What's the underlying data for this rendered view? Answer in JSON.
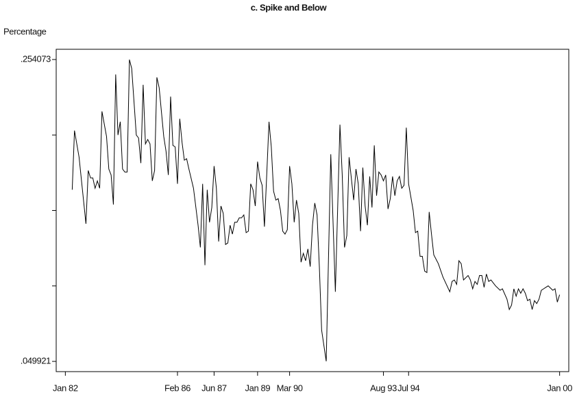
{
  "chart_data": {
    "type": "line",
    "title": "c. Spike and Below",
    "y_label": "Percentage",
    "x": [
      "Apr 82",
      "May 82",
      "Jul 82",
      "Oct 82",
      "Nov 82",
      "Dec 82",
      "Jan 83",
      "Feb 83",
      "Mar 83",
      "Apr 83",
      "May 83",
      "Jul 83",
      "Aug 83",
      "Sep 83",
      "Oct 83",
      "Nov 83",
      "Dec 83",
      "Jan 84",
      "Feb 84",
      "Mar 84",
      "Apr 84",
      "May 84",
      "Jun 84",
      "Aug 84",
      "Sep 84",
      "Oct 84",
      "Nov 84",
      "Dec 84",
      "Jan 85",
      "Feb 85",
      "Mar 85",
      "Apr 85",
      "May 85",
      "Jun 85",
      "Aug 85",
      "Sep 85",
      "Oct 85",
      "Nov 85",
      "Dec 85",
      "Jan 86",
      "Feb 86",
      "Mar 86",
      "Apr 86",
      "May 86",
      "Jun 86",
      "Jul 86",
      "Sep 86",
      "Nov 86",
      "Dec 86",
      "Jan 87",
      "Feb 87",
      "Mar 87",
      "Apr 87",
      "May 87",
      "Jun 87",
      "Jul 87",
      "Aug 87",
      "Sep 87",
      "Oct 87",
      "Nov 87",
      "Dec 87",
      "Jan 88",
      "Feb 88",
      "Mar 88",
      "Apr 88",
      "May 88",
      "Jun 88",
      "Jul 88",
      "Aug 88",
      "Sep 88",
      "Oct 88",
      "Nov 88",
      "Dec 88",
      "Jan 89",
      "Feb 89",
      "Mar 89",
      "Apr 89",
      "May 89",
      "Jun 89",
      "Jul 89",
      "Aug 89",
      "Sep 89",
      "Oct 89",
      "Nov 89",
      "Dec 89",
      "Jan 90",
      "Feb 90",
      "Mar 90",
      "Apr 90",
      "May 90",
      "Jun 90",
      "Jul 90",
      "Aug 90",
      "Sep 90",
      "Oct 90",
      "Nov 90",
      "Dec 90",
      "Jan 91",
      "Feb 91",
      "Mar 91",
      "Apr 91",
      "May 91",
      "Jul 91",
      "Sep 91",
      "Nov 91",
      "Jan 92",
      "Feb 92",
      "Mar 92",
      "Apr 92",
      "May 92",
      "Jul 92",
      "Aug 92",
      "Sep 92",
      "Oct 92",
      "Nov 92",
      "Dec 92",
      "Jan 93",
      "Feb 93",
      "Mar 93",
      "Apr 93",
      "May 93",
      "Jun 93",
      "Jul 93",
      "Aug 93",
      "Sep 93",
      "Oct 93",
      "Nov 93",
      "Dec 93",
      "Jan 94",
      "Feb 94",
      "Mar 94",
      "Apr 94",
      "May 94",
      "Jun 94",
      "Jul 94",
      "Sep 94",
      "Oct 94",
      "Nov 94",
      "Dec 94",
      "Jan 95",
      "Feb 95",
      "Mar 95",
      "Apr 95",
      "May 95",
      "Jun 95",
      "Aug 95",
      "Oct 95",
      "Jan 96",
      "Feb 96",
      "Mar 96",
      "Apr 96",
      "May 96",
      "Jun 96",
      "Jul 96",
      "Sep 96",
      "Oct 96",
      "Nov 96",
      "Dec 96",
      "Jan 97",
      "Feb 97",
      "Mar 97",
      "Apr 97",
      "May 97",
      "Jun 97",
      "Jul 97",
      "Sep 97",
      "Nov 97",
      "Dec 97",
      "Feb 98",
      "Mar 98",
      "Apr 98",
      "May 98",
      "Jun 98",
      "Jul 98",
      "Aug 98",
      "Sep 98",
      "Oct 98",
      "Nov 98",
      "Dec 98",
      "Jan 99",
      "Feb 99",
      "Mar 99",
      "Apr 99",
      "May 99",
      "Jun 99",
      "Jul 99",
      "Aug 99",
      "Oct 99",
      "Nov 99",
      "Dec 99",
      "Jan 00"
    ],
    "values": [
      0.166,
      0.206,
      0.188,
      0.143,
      0.179,
      0.174,
      0.174,
      0.167,
      0.172,
      0.167,
      0.219,
      0.202,
      0.18,
      0.176,
      0.156,
      0.244,
      0.203,
      0.212,
      0.18,
      0.178,
      0.178,
      0.254,
      0.248,
      0.203,
      0.201,
      0.184,
      0.237,
      0.197,
      0.2,
      0.197,
      0.172,
      0.179,
      0.242,
      0.235,
      0.202,
      0.192,
      0.176,
      0.229,
      0.196,
      0.195,
      0.17,
      0.214,
      0.198,
      0.186,
      0.187,
      0.18,
      0.167,
      0.142,
      0.127,
      0.17,
      0.115,
      0.166,
      0.144,
      0.154,
      0.182,
      0.167,
      0.131,
      0.155,
      0.15,
      0.129,
      0.13,
      0.142,
      0.136,
      0.144,
      0.144,
      0.147,
      0.147,
      0.149,
      0.137,
      0.138,
      0.17,
      0.166,
      0.155,
      0.185,
      0.174,
      0.169,
      0.141,
      0.176,
      0.212,
      0.195,
      0.165,
      0.159,
      0.16,
      0.152,
      0.138,
      0.136,
      0.139,
      0.182,
      0.17,
      0.144,
      0.159,
      0.15,
      0.117,
      0.123,
      0.118,
      0.126,
      0.114,
      0.142,
      0.157,
      0.149,
      0.114,
      0.071,
      0.05,
      0.19,
      0.097,
      0.21,
      0.176,
      0.127,
      0.135,
      0.188,
      0.159,
      0.18,
      0.17,
      0.138,
      0.181,
      0.155,
      0.142,
      0.175,
      0.154,
      0.196,
      0.162,
      0.178,
      0.176,
      0.172,
      0.176,
      0.153,
      0.16,
      0.175,
      0.162,
      0.172,
      0.175,
      0.167,
      0.169,
      0.208,
      0.17,
      0.152,
      0.137,
      0.138,
      0.121,
      0.121,
      0.111,
      0.11,
      0.151,
      0.136,
      0.122,
      0.116,
      0.107,
      0.097,
      0.104,
      0.105,
      0.102,
      0.118,
      0.116,
      0.105,
      0.108,
      0.105,
      0.099,
      0.104,
      0.102,
      0.108,
      0.108,
      0.1,
      0.109,
      0.104,
      0.105,
      0.101,
      0.098,
      0.099,
      0.092,
      0.085,
      0.088,
      0.099,
      0.094,
      0.099,
      0.096,
      0.099,
      0.096,
      0.091,
      0.092,
      0.085,
      0.091,
      0.089,
      0.092,
      0.098,
      0.099,
      0.1,
      0.101,
      0.098,
      0.099,
      0.09,
      0.095
    ],
    "color": "#000000",
    "xlim": [
      "Sep 81",
      "May 00"
    ],
    "xticks": [
      "Jan 82",
      "Feb 86",
      "Jun 87",
      "Jan 89",
      "Mar 90",
      "Aug 93",
      "Jul 94",
      "Jan 00"
    ],
    "ylim": [
      0.043,
      0.261
    ],
    "yticks": [
      {
        "value": 0.254073,
        "label": ".254073"
      },
      {
        "value": 0.049921,
        "label": ".049921"
      }
    ],
    "yminor_ticks": [
      0.203035,
      0.151997,
      0.100959
    ]
  }
}
